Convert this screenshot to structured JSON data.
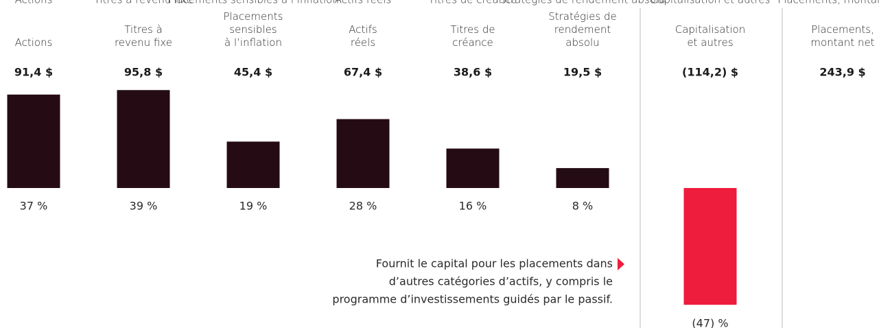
{
  "chart_data": {
    "type": "bar",
    "categories": [
      "Actions",
      "Titres à\nrevenu fixe",
      "Placements\nsensibles\nà l’inflation",
      "Actifs\nréels",
      "Titres de\ncréance",
      "Stratégies de\nrendement\nabsolu",
      "Capitalisation\net autres"
    ],
    "values": [
      91.4,
      95.8,
      45.4,
      67.4,
      38.6,
      19.5,
      -114.2
    ],
    "value_labels": [
      "91,4 $",
      "95,8 $",
      "45,4 $",
      "67,4 $",
      "38,6 $",
      "19,5 $",
      "(114,2) $"
    ],
    "shares": [
      37,
      39,
      19,
      28,
      16,
      8,
      -47
    ],
    "share_labels": [
      "37 %",
      "39 %",
      "19 %",
      "28 %",
      "16 %",
      "8 %",
      "(47) %"
    ],
    "color": "#250b13",
    "negative_color": "#ee1c3d",
    "total": {
      "label": "Placements,\nmontant net",
      "value": 243.9,
      "value_label": "243,9 $"
    },
    "note": [
      "Fournit le capital pour les placements dans",
      "d’autres catégories d’actifs, y compris le",
      "programme d’investissements guidés par le passif."
    ]
  }
}
